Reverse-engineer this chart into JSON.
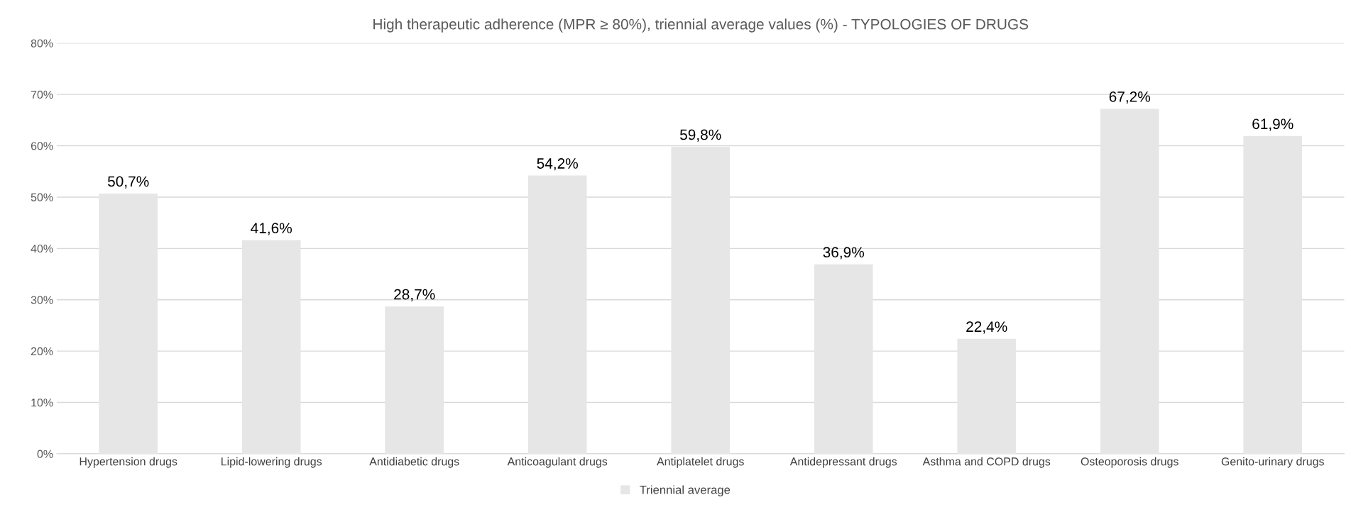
{
  "chart_data": {
    "type": "bar",
    "title": "High therapeutic adherence (MPR ≥ 80%), triennial average values (%) - TYPOLOGIES OF DRUGS",
    "categories": [
      "Hypertension drugs",
      "Lipid-lowering drugs",
      "Antidiabetic drugs",
      "Anticoagulant drugs",
      "Antiplatelet drugs",
      "Antidepressant drugs",
      "Asthma and COPD drugs",
      "Osteoporosis drugs",
      "Genito-urinary drugs"
    ],
    "series": [
      {
        "name": "Triennial average",
        "color": "#e6e6e6",
        "values": [
          50.7,
          41.6,
          28.7,
          54.2,
          59.8,
          36.9,
          22.4,
          67.2,
          61.9
        ],
        "value_labels": [
          "50,7%",
          "41,6%",
          "28,7%",
          "54,2%",
          "59,8%",
          "36,9%",
          "22,4%",
          "67,2%",
          "61,9%"
        ]
      }
    ],
    "ylim": [
      0,
      80
    ],
    "yticks": [
      {
        "value": 0,
        "label": "0%"
      },
      {
        "value": 10,
        "label": "10%"
      },
      {
        "value": 20,
        "label": "20%"
      },
      {
        "value": 30,
        "label": "30%"
      },
      {
        "value": 40,
        "label": "40%"
      },
      {
        "value": 50,
        "label": "50%"
      },
      {
        "value": 60,
        "label": "60%"
      },
      {
        "value": 70,
        "label": "70%"
      },
      {
        "value": 80,
        "label": "80%"
      }
    ],
    "grid": "y",
    "legend": "bottom"
  }
}
